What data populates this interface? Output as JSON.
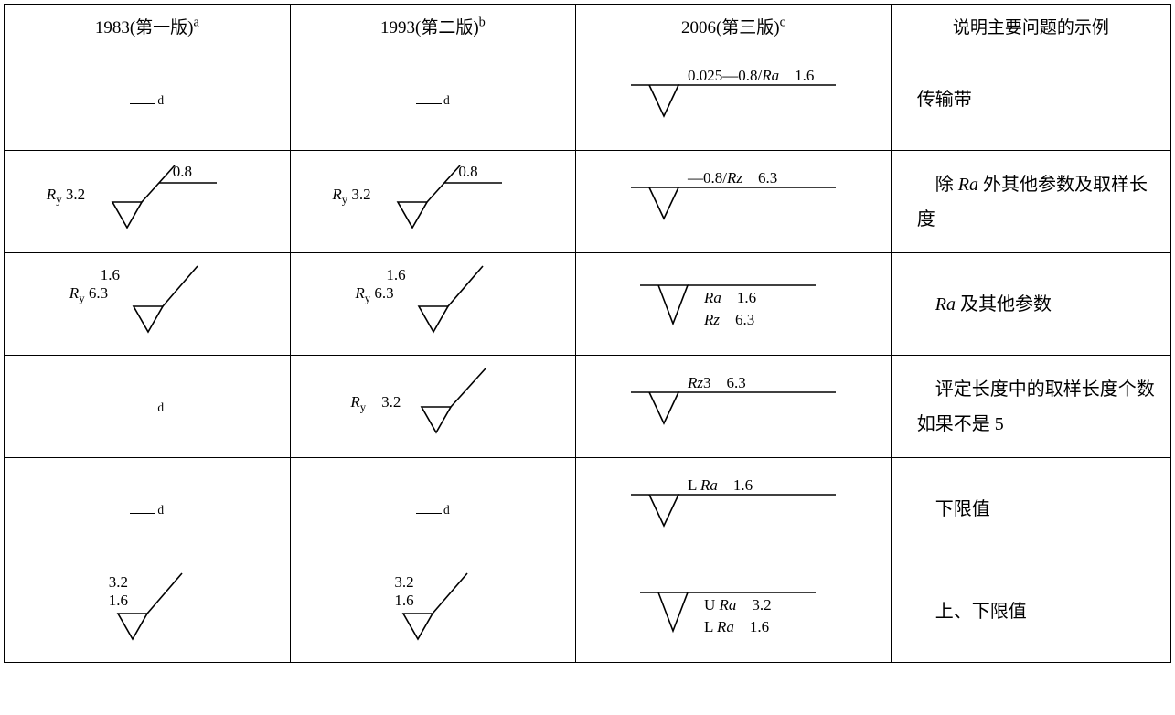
{
  "table": {
    "border_color": "#000000",
    "background_color": "#ffffff",
    "text_color": "#000000",
    "headers": [
      {
        "label": "1983(第一版)",
        "sup": "a"
      },
      {
        "label": "1993(第二版)",
        "sup": "b"
      },
      {
        "label": "2006(第三版)",
        "sup": "c"
      },
      {
        "label": "说明主要问题的示例",
        "sup": ""
      }
    ],
    "rows": [
      {
        "c1": {
          "type": "dash-d"
        },
        "c2": {
          "type": "dash-d"
        },
        "c3": {
          "type": "sym-flag",
          "text": "0.025—0.8/Ra　1.6"
        },
        "desc": "传输带"
      },
      {
        "c1": {
          "type": "sym-ry-box",
          "left": "Ry 3.2",
          "box": "0.8"
        },
        "c2": {
          "type": "sym-ry-box",
          "left": "Ry 3.2",
          "box": "0.8"
        },
        "c3": {
          "type": "sym-flag",
          "text": "—0.8/Rz　6.3"
        },
        "desc": "　除 Ra 外其他参数及取样长度"
      },
      {
        "c1": {
          "type": "sym-stack",
          "l1": "　　1.6",
          "l2": "Ry 6.3"
        },
        "c2": {
          "type": "sym-stack",
          "l1": "　　1.6",
          "l2": "Ry 6.3"
        },
        "c3": {
          "type": "sym-flag2",
          "l1": "Ra　1.6",
          "l2": "Rz　6.3"
        },
        "desc": "　Ra 及其他参数"
      },
      {
        "c1": {
          "type": "dash-d"
        },
        "c2": {
          "type": "sym-single",
          "text": "Ry　3.2"
        },
        "c3": {
          "type": "sym-flag",
          "text": "Rz3　6.3"
        },
        "desc": "　评定长度中的取样长度个数如果不是 5"
      },
      {
        "c1": {
          "type": "dash-d"
        },
        "c2": {
          "type": "dash-d"
        },
        "c3": {
          "type": "sym-flag",
          "text": "L Ra　1.6"
        },
        "desc": "　下限值"
      },
      {
        "c1": {
          "type": "sym-stack-plain",
          "l1": "3.2",
          "l2": "1.6"
        },
        "c2": {
          "type": "sym-stack-plain",
          "l1": "3.2",
          "l2": "1.6"
        },
        "c3": {
          "type": "sym-flag2",
          "l1": "U Ra　3.2",
          "l2": "L Ra　1.6"
        },
        "desc": "　上、下限值"
      }
    ]
  }
}
